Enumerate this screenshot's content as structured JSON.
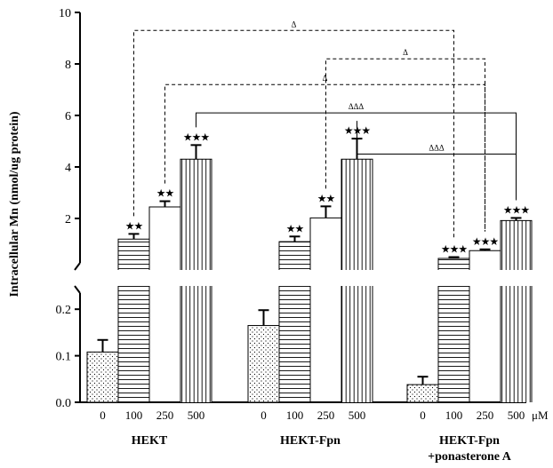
{
  "chart_data": {
    "type": "bar",
    "ylabel": "Intracellular Mn (nmol/ug protein)",
    "x_unit": "μM",
    "upper_panel": {
      "ylim": [
        0,
        10
      ],
      "yticks": [
        "2",
        "4",
        "6",
        "8",
        "10"
      ]
    },
    "lower_panel": {
      "ylim": [
        0,
        0.25
      ],
      "yticks": [
        "0.0",
        "0.1",
        "0.2"
      ]
    },
    "groups": [
      {
        "name": "HEKT",
        "bars": [
          {
            "dose": "0",
            "value": 0.108,
            "error": 0.026,
            "pattern": "dots"
          },
          {
            "dose": "100",
            "value": 1.2,
            "error": 0.2,
            "pattern": "hlines",
            "sig": "★★"
          },
          {
            "dose": "250",
            "value": 2.45,
            "error": 0.22,
            "pattern": "blank",
            "sig": "★★"
          },
          {
            "dose": "500",
            "value": 4.3,
            "error": 0.55,
            "pattern": "vlines",
            "sig": "★★★"
          }
        ]
      },
      {
        "name": "HEKT-Fpn",
        "bars": [
          {
            "dose": "0",
            "value": 0.165,
            "error": 0.033,
            "pattern": "dots"
          },
          {
            "dose": "100",
            "value": 1.1,
            "error": 0.2,
            "pattern": "hlines",
            "sig": "★★"
          },
          {
            "dose": "250",
            "value": 2.02,
            "error": 0.45,
            "pattern": "blank",
            "sig": "★★"
          },
          {
            "dose": "500",
            "value": 4.3,
            "error": 0.8,
            "pattern": "vlines",
            "sig": "★★★"
          }
        ]
      },
      {
        "name": "HEKT-Fpn",
        "name_line2": "+ponasterone A",
        "bars": [
          {
            "dose": "0",
            "value": 0.038,
            "error": 0.017,
            "pattern": "dots"
          },
          {
            "dose": "100",
            "value": 0.45,
            "error": 0.05,
            "pattern": "hlines",
            "sig": "★★★"
          },
          {
            "dose": "250",
            "value": 0.75,
            "error": 0.05,
            "pattern": "blank",
            "sig": "★★★"
          },
          {
            "dose": "500",
            "value": 1.92,
            "error": 0.1,
            "pattern": "vlines",
            "sig": "★★★"
          }
        ]
      }
    ],
    "comparisons": [
      {
        "from": [
          0,
          1
        ],
        "to": [
          2,
          1
        ],
        "y": 9.3,
        "label": "Δ",
        "style": "dashed"
      },
      {
        "from": [
          1,
          2
        ],
        "to": [
          2,
          2
        ],
        "y": 8.2,
        "label": "Δ",
        "style": "dashed"
      },
      {
        "from": [
          0,
          2
        ],
        "to": [
          2,
          2
        ],
        "y": 7.2,
        "label": "Δ",
        "style": "dashed"
      },
      {
        "from": [
          0,
          3
        ],
        "to": [
          2,
          3
        ],
        "y": 6.1,
        "label": "ΔΔΔ",
        "style": "solid"
      },
      {
        "from": [
          1,
          3
        ],
        "to": [
          2,
          3
        ],
        "y": 4.5,
        "label": "ΔΔΔ",
        "style": "solid"
      }
    ]
  }
}
